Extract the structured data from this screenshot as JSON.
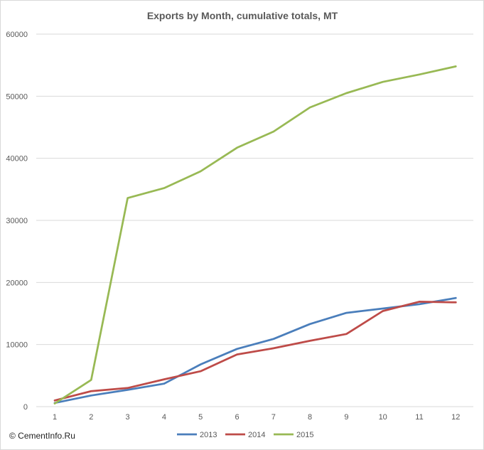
{
  "chart_data": {
    "type": "line",
    "title": "Exports by Month, cumulative totals, MT",
    "xlabel": "",
    "ylabel": "",
    "categories": [
      "1",
      "2",
      "3",
      "4",
      "5",
      "6",
      "7",
      "8",
      "9",
      "10",
      "11",
      "12"
    ],
    "ylim": [
      0,
      60000
    ],
    "yticks": [
      0,
      10000,
      20000,
      30000,
      40000,
      50000,
      60000
    ],
    "grid": true,
    "legend_position": "bottom",
    "series": [
      {
        "name": "2013",
        "color": "#4a7ebb",
        "values": [
          600,
          1800,
          2700,
          3700,
          6800,
          9300,
          10900,
          13300,
          15100,
          15800,
          16500,
          17500
        ]
      },
      {
        "name": "2014",
        "color": "#be4b48",
        "values": [
          1000,
          2500,
          3000,
          4400,
          5700,
          8400,
          9400,
          10600,
          11700,
          15400,
          16900,
          16800
        ]
      },
      {
        "name": "2015",
        "color": "#98b954",
        "values": [
          500,
          4300,
          33600,
          35200,
          37900,
          41700,
          44300,
          48200,
          50500,
          52300,
          53500,
          54800
        ]
      }
    ]
  },
  "footer": {
    "copyright": "© CementInfo.Ru"
  }
}
